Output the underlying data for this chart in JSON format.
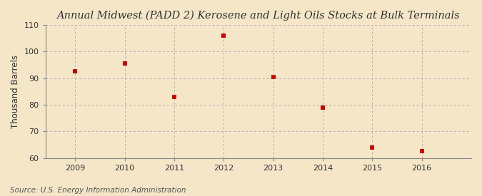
{
  "title": "Annual Midwest (PADD 2) Kerosene and Light Oils Stocks at Bulk Terminals",
  "ylabel": "Thousand Barrels",
  "source": "Source: U.S. Energy Information Administration",
  "years": [
    2009,
    2010,
    2011,
    2012,
    2013,
    2014,
    2015,
    2016
  ],
  "values": [
    92.5,
    95.5,
    83.0,
    106.0,
    90.5,
    79.0,
    64.0,
    62.5
  ],
  "ylim": [
    60,
    110
  ],
  "yticks": [
    60,
    70,
    80,
    90,
    100,
    110
  ],
  "xticks": [
    2009,
    2010,
    2011,
    2012,
    2013,
    2014,
    2015,
    2016
  ],
  "marker_color": "#cc0000",
  "marker_size": 5,
  "background_color": "#f5e6c8",
  "plot_background": "#f5e6c8",
  "grid_color": "#b0b0b0",
  "title_fontsize": 10.5,
  "axis_label_fontsize": 8.5,
  "tick_fontsize": 8,
  "source_fontsize": 7.5,
  "xlim": [
    2008.4,
    2017.0
  ]
}
